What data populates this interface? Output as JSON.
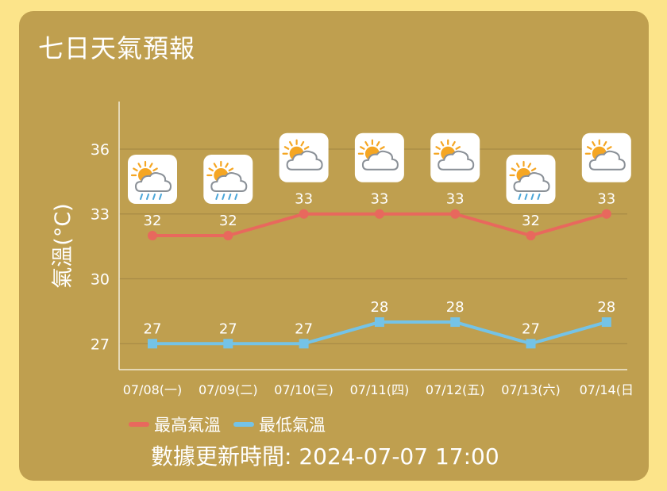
{
  "title": "七日天氣預報",
  "colors": {
    "high": "#e8685d",
    "low": "#74c3e7",
    "axis": "#f2ecd9",
    "grid": "#a68a45",
    "text": "#ffffff"
  },
  "chart_data": {
    "type": "line",
    "ylabel": "氣溫(°C)",
    "yticks": [
      27,
      30,
      33,
      36
    ],
    "ylim": [
      25.8,
      38.2
    ],
    "grid": true,
    "legend_position": "bottom-left",
    "categories": [
      "07/08(一)",
      "07/09(二)",
      "07/10(三)",
      "07/11(四)",
      "07/12(五)",
      "07/13(六)",
      "07/14(日"
    ],
    "series": [
      {
        "name": "最高氣溫",
        "color": "#e8685d",
        "values": [
          32,
          32,
          33,
          33,
          33,
          32,
          33
        ]
      },
      {
        "name": "最低氣溫",
        "color": "#74c3e7",
        "values": [
          27,
          27,
          27,
          28,
          28,
          27,
          28
        ]
      }
    ],
    "weather_icons": [
      "sun-cloud-rain-icon",
      "sun-cloud-rain-icon",
      "sun-cloud-icon",
      "sun-cloud-icon",
      "sun-cloud-icon",
      "sun-cloud-rain-icon",
      "sun-cloud-icon"
    ]
  },
  "legend": {
    "high_label": "最高氣溫",
    "low_label": "最低氣溫"
  },
  "updated": "數據更新時間: 2024-07-07 17:00"
}
